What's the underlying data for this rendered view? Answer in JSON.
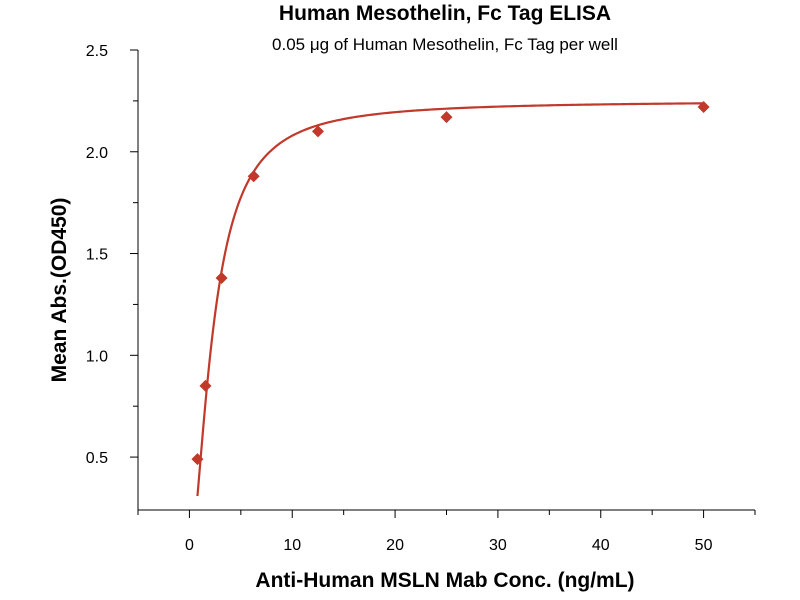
{
  "chart_data": {
    "type": "scatter",
    "title": "Human Mesothelin, Fc Tag ELISA",
    "subtitle": "0.05 μg of Human Mesothelin, Fc Tag per well",
    "xlabel": "Anti-Human MSLN Mab Conc. (ng/mL)",
    "ylabel": "Mean Abs.(OD450)",
    "xlim": [
      -5,
      55
    ],
    "ylim": [
      0.24,
      2.5
    ],
    "xticks": [
      0,
      10,
      20,
      30,
      40,
      50
    ],
    "yticks": [
      0.5,
      1.0,
      1.5,
      2.0,
      2.5
    ],
    "xtick_labels": [
      "0",
      "10",
      "20",
      "30",
      "40",
      "50"
    ],
    "ytick_labels": [
      "0.5",
      "1.0",
      "1.5",
      "2.0",
      "2.5"
    ],
    "grid": false,
    "series": [
      {
        "color": "#c0392b",
        "marker": "diamond",
        "x": [
          0.78,
          1.56,
          3.13,
          6.25,
          12.5,
          25,
          50
        ],
        "y": [
          0.49,
          0.85,
          1.38,
          1.88,
          2.1,
          2.17,
          2.22
        ],
        "fit": "4PL"
      }
    ]
  }
}
